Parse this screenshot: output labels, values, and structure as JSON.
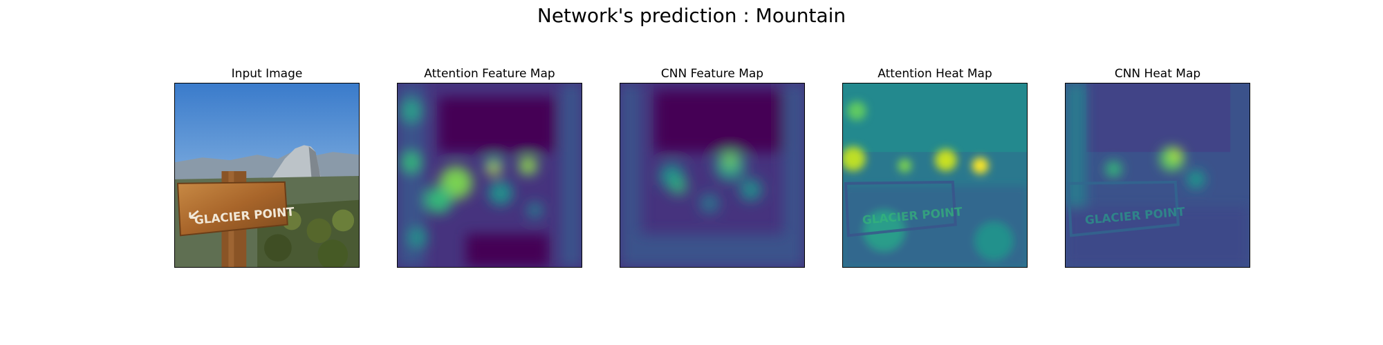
{
  "figure": {
    "title": "Network's prediction : Mountain"
  },
  "panels": [
    {
      "title": "Input Image",
      "sign_text": "GLACIER POINT"
    },
    {
      "title": "Attention Feature Map"
    },
    {
      "title": "CNN Feature Map"
    },
    {
      "title": "Attention Heat Map",
      "sign_text": "GLACIER POINT"
    },
    {
      "title": "CNN Heat Map",
      "sign_text": "GLACIER POINT"
    }
  ],
  "colors": {
    "viridis_dark": "#440154",
    "viridis_purple": "#46337e",
    "viridis_blue": "#365c8d",
    "viridis_teal": "#21918c",
    "viridis_green": "#35b779",
    "viridis_yellow": "#fde725",
    "sky_top": "#3f82cf",
    "sky_bottom": "#a9cdec",
    "sign_wood": "#b06e2b"
  }
}
